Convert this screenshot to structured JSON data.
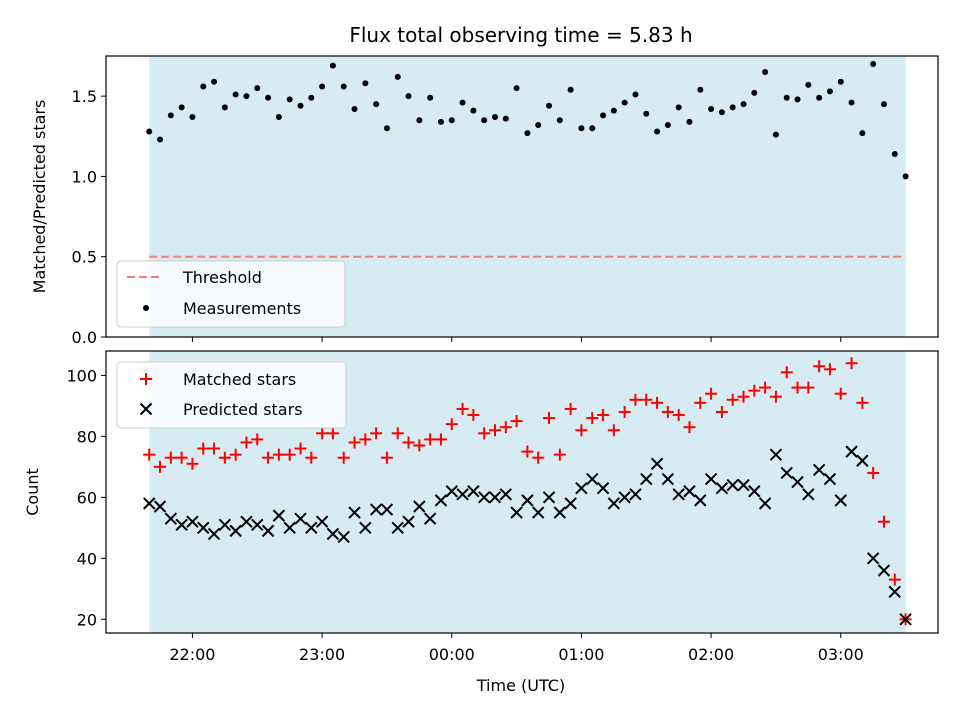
{
  "chart_data": [
    {
      "type": "scatter",
      "title": "Flux total observing time = 5.83 h",
      "xlabel": "",
      "ylabel": "Matched/Predicted stars",
      "x_tick_labels": [
        "22:00",
        "23:00",
        "00:00",
        "01:00",
        "02:00",
        "03:00"
      ],
      "xlim": [
        "21:20",
        "03:45"
      ],
      "ylim": [
        0,
        1.75
      ],
      "y_ticks": [
        "0.0",
        "0.5",
        "1.0",
        "1.5"
      ],
      "observing_window": [
        "21:40",
        "03:30"
      ],
      "threshold": 0.5,
      "legend_position": "lower-left",
      "series": [
        {
          "name": "Measurements",
          "marker": "dot",
          "color": "#000000",
          "x": [
            "21:40",
            "21:45",
            "21:50",
            "21:55",
            "22:00",
            "22:05",
            "22:10",
            "22:15",
            "22:20",
            "22:25",
            "22:30",
            "22:35",
            "22:40",
            "22:45",
            "22:50",
            "22:55",
            "23:00",
            "23:05",
            "23:10",
            "23:15",
            "23:20",
            "23:25",
            "23:30",
            "23:35",
            "23:40",
            "23:45",
            "23:50",
            "23:55",
            "00:00",
            "00:05",
            "00:10",
            "00:15",
            "00:20",
            "00:25",
            "00:30",
            "00:35",
            "00:40",
            "00:45",
            "00:50",
            "00:55",
            "01:00",
            "01:05",
            "01:10",
            "01:15",
            "01:20",
            "01:25",
            "01:30",
            "01:35",
            "01:40",
            "01:45",
            "01:50",
            "01:55",
            "02:00",
            "02:05",
            "02:10",
            "02:15",
            "02:20",
            "02:25",
            "02:30",
            "02:35",
            "02:40",
            "02:45",
            "02:50",
            "02:55",
            "03:00",
            "03:05",
            "03:10",
            "03:15",
            "03:20",
            "03:25",
            "03:30"
          ],
          "y": [
            1.28,
            1.23,
            1.38,
            1.43,
            1.37,
            1.56,
            1.59,
            1.43,
            1.51,
            1.5,
            1.55,
            1.49,
            1.37,
            1.48,
            1.44,
            1.49,
            1.56,
            1.69,
            1.56,
            1.42,
            1.58,
            1.45,
            1.3,
            1.62,
            1.5,
            1.35,
            1.49,
            1.34,
            1.35,
            1.46,
            1.41,
            1.35,
            1.37,
            1.36,
            1.55,
            1.27,
            1.32,
            1.44,
            1.35,
            1.54,
            1.3,
            1.3,
            1.38,
            1.41,
            1.46,
            1.51,
            1.39,
            1.28,
            1.32,
            1.43,
            1.34,
            1.54,
            1.42,
            1.4,
            1.43,
            1.45,
            1.52,
            1.65,
            1.26,
            1.49,
            1.48,
            1.57,
            1.49,
            1.53,
            1.59,
            1.46,
            1.27,
            1.7,
            1.45,
            1.14,
            1.0
          ]
        },
        {
          "name": "Threshold",
          "marker": "dashed-line",
          "color": "#f08080",
          "x": [
            "21:40",
            "03:30"
          ],
          "y": [
            0.5,
            0.5
          ]
        }
      ],
      "legend": [
        "Threshold",
        "Measurements"
      ]
    },
    {
      "type": "scatter",
      "title": "",
      "xlabel": "Time (UTC)",
      "ylabel": "Count",
      "x_tick_labels": [
        "22:00",
        "23:00",
        "00:00",
        "01:00",
        "02:00",
        "03:00"
      ],
      "xlim": [
        "21:20",
        "03:45"
      ],
      "ylim": [
        15.5,
        108
      ],
      "y_ticks": [
        "20",
        "40",
        "60",
        "80",
        "100"
      ],
      "observing_window": [
        "21:40",
        "03:30"
      ],
      "legend_position": "upper-left",
      "series": [
        {
          "name": "Matched stars",
          "marker": "plus",
          "color": "#ff0000",
          "x": [
            "21:40",
            "21:45",
            "21:50",
            "21:55",
            "22:00",
            "22:05",
            "22:10",
            "22:15",
            "22:20",
            "22:25",
            "22:30",
            "22:35",
            "22:40",
            "22:45",
            "22:50",
            "22:55",
            "23:00",
            "23:05",
            "23:10",
            "23:15",
            "23:20",
            "23:25",
            "23:30",
            "23:35",
            "23:40",
            "23:45",
            "23:50",
            "23:55",
            "00:00",
            "00:05",
            "00:10",
            "00:15",
            "00:20",
            "00:25",
            "00:30",
            "00:35",
            "00:40",
            "00:45",
            "00:50",
            "00:55",
            "01:00",
            "01:05",
            "01:10",
            "01:15",
            "01:20",
            "01:25",
            "01:30",
            "01:35",
            "01:40",
            "01:45",
            "01:50",
            "01:55",
            "02:00",
            "02:05",
            "02:10",
            "02:15",
            "02:20",
            "02:25",
            "02:30",
            "02:35",
            "02:40",
            "02:45",
            "02:50",
            "02:55",
            "03:00",
            "03:05",
            "03:10",
            "03:15",
            "03:20",
            "03:25",
            "03:30"
          ],
          "y": [
            74,
            70,
            73,
            73,
            71,
            76,
            76,
            73,
            74,
            78,
            79,
            73,
            74,
            74,
            76,
            73,
            81,
            81,
            73,
            78,
            79,
            81,
            73,
            81,
            78,
            77,
            79,
            79,
            84,
            89,
            87,
            81,
            82,
            83,
            85,
            75,
            73,
            86,
            74,
            89,
            82,
            86,
            87,
            82,
            88,
            92,
            92,
            91,
            88,
            87,
            83,
            91,
            94,
            88,
            92,
            93,
            95,
            96,
            93,
            101,
            96,
            96,
            103,
            102,
            94,
            104,
            91,
            68,
            52,
            33,
            20
          ]
        },
        {
          "name": "Predicted stars",
          "marker": "x",
          "color": "#000000",
          "x": [
            "21:40",
            "21:45",
            "21:50",
            "21:55",
            "22:00",
            "22:05",
            "22:10",
            "22:15",
            "22:20",
            "22:25",
            "22:30",
            "22:35",
            "22:40",
            "22:45",
            "22:50",
            "22:55",
            "23:00",
            "23:05",
            "23:10",
            "23:15",
            "23:20",
            "23:25",
            "23:30",
            "23:35",
            "23:40",
            "23:45",
            "23:50",
            "23:55",
            "00:00",
            "00:05",
            "00:10",
            "00:15",
            "00:20",
            "00:25",
            "00:30",
            "00:35",
            "00:40",
            "00:45",
            "00:50",
            "00:55",
            "01:00",
            "01:05",
            "01:10",
            "01:15",
            "01:20",
            "01:25",
            "01:30",
            "01:35",
            "01:40",
            "01:45",
            "01:50",
            "01:55",
            "02:00",
            "02:05",
            "02:10",
            "02:15",
            "02:20",
            "02:25",
            "02:30",
            "02:35",
            "02:40",
            "02:45",
            "02:50",
            "02:55",
            "03:00",
            "03:05",
            "03:10",
            "03:15",
            "03:20",
            "03:25",
            "03:30"
          ],
          "y": [
            58,
            57,
            53,
            51,
            52,
            50,
            48,
            51,
            49,
            52,
            51,
            49,
            54,
            50,
            53,
            50,
            52,
            48,
            47,
            55,
            50,
            56,
            56,
            50,
            52,
            57,
            53,
            59,
            62,
            61,
            62,
            60,
            60,
            61,
            55,
            59,
            55,
            60,
            55,
            58,
            63,
            66,
            63,
            58,
            60,
            61,
            66,
            71,
            66,
            61,
            62,
            59,
            66,
            63,
            64,
            64,
            62,
            58,
            74,
            68,
            65,
            61,
            69,
            66,
            59,
            75,
            72,
            40,
            36,
            29,
            20
          ]
        }
      ],
      "legend": [
        "Matched stars",
        "Predicted stars"
      ]
    }
  ],
  "colors": {
    "window_fill": "#add8e6",
    "threshold": "#f08080",
    "matched": "#ff0000",
    "predicted": "#000000",
    "measurement": "#000000"
  }
}
